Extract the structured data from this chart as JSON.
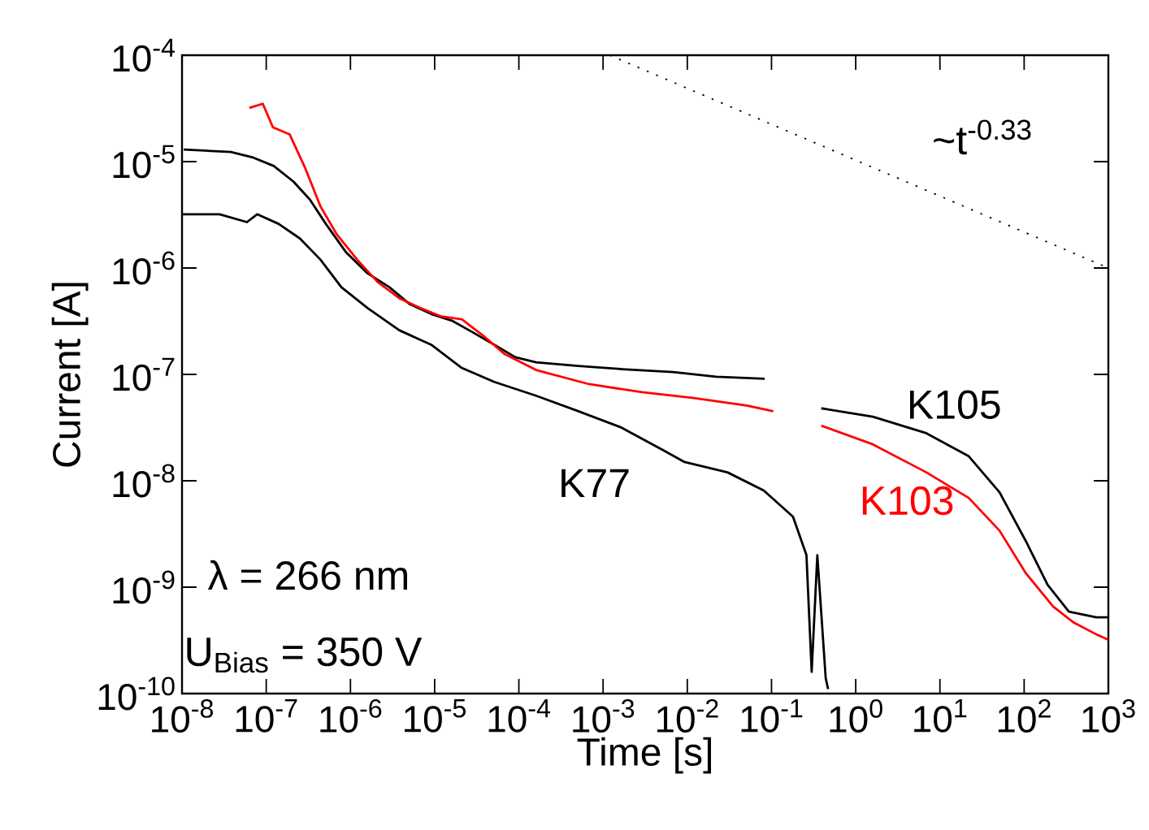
{
  "chart_data": {
    "type": "line",
    "xlabel": "Time [s]",
    "ylabel": "Current [A]",
    "log": "xy",
    "grid": false,
    "marker": "none",
    "xlim": [
      1e-08,
      1000
    ],
    "ylim": [
      1e-10,
      0.0001
    ],
    "xticks": [
      {
        "value": 1e-08,
        "label": "10$^{-8}$"
      },
      {
        "value": 1e-07,
        "label": "10$^{-7}$"
      },
      {
        "value": 1e-06,
        "label": "10$^{-6}$"
      },
      {
        "value": 1e-05,
        "label": "10$^{-5}$"
      },
      {
        "value": 0.0001,
        "label": "10$^{-4}$"
      },
      {
        "value": 0.001,
        "label": "10$^{-3}$"
      },
      {
        "value": 0.01,
        "label": "10$^{-2}$"
      },
      {
        "value": 0.1,
        "label": "10$^{-1}$"
      },
      {
        "value": 1,
        "label": "10$^{0}$"
      },
      {
        "value": 10,
        "label": "10$^{1}$"
      },
      {
        "value": 100,
        "label": "10$^{2}$"
      },
      {
        "value": 1000,
        "label": "10$^{3}$"
      }
    ],
    "yticks": [
      {
        "value": 1e-10,
        "label": "10$^{-10}$"
      },
      {
        "value": 1e-09,
        "label": "10$^{-9}$"
      },
      {
        "value": 1e-08,
        "label": "10$^{-8}$"
      },
      {
        "value": 1e-07,
        "label": "10$^{-7}$"
      },
      {
        "value": 1e-06,
        "label": "10$^{-6}$"
      },
      {
        "value": 1e-05,
        "label": "10$^{-5}$"
      },
      {
        "value": 0.0001,
        "label": "10$^{-4}$"
      }
    ],
    "series": [
      {
        "name": "K105",
        "color": "#000000",
        "x": [
          1.05e-08,
          3.8e-08,
          6.8e-08,
          1.23e-07,
          2.1e-07,
          3.3e-07,
          5.1e-07,
          8.9e-07,
          1.6e-06,
          2.9e-06,
          5e-06,
          9.1e-06,
          1.6e-05,
          2.8e-05,
          5.1e-05,
          9.1e-05,
          0.00016,
          0.00051,
          0.0017,
          0.0068,
          0.022,
          0.083,
          0.2,
          0.39,
          1.6,
          6.9,
          22,
          51,
          105,
          190,
          340,
          720,
          1000
        ],
        "values": [
          1.3e-05,
          1.23e-05,
          1.1e-05,
          9.1e-06,
          6.5e-06,
          4.4e-06,
          2.6e-06,
          1.4e-06,
          8.9e-07,
          6.6e-07,
          4.6e-07,
          3.7e-07,
          3.2e-07,
          2.5e-07,
          1.9e-07,
          1.45e-07,
          1.3e-07,
          1.2e-07,
          1.12e-07,
          1.05e-07,
          9.5e-08,
          9.1e-08,
          null,
          4.8e-08,
          4e-08,
          2.8e-08,
          1.7e-08,
          7.8e-09,
          2.7e-09,
          1.05e-09,
          5.9e-10,
          5.2e-10,
          5.2e-10
        ]
      },
      {
        "name": "K103",
        "color": "#ff0000",
        "x": [
          6.3e-08,
          9.1e-08,
          1.2e-07,
          1.9e-07,
          2.9e-07,
          4.4e-07,
          6.8e-07,
          1.2e-06,
          2.1e-06,
          3.8e-06,
          6.8e-06,
          1.2e-05,
          2.1e-05,
          3.8e-05,
          6.8e-05,
          0.00016,
          0.00068,
          0.0029,
          0.012,
          0.051,
          0.105,
          0.2,
          0.39,
          1.6,
          6.9,
          22,
          51,
          105,
          220,
          380,
          720,
          1000
        ],
        "values": [
          3.2e-05,
          3.5e-05,
          2.1e-05,
          1.8e-05,
          8.7e-06,
          3.8e-06,
          2.1e-06,
          1.2e-06,
          7.4e-07,
          5.2e-07,
          4.2e-07,
          3.5e-07,
          3.3e-07,
          2.3e-07,
          1.55e-07,
          1.1e-07,
          8.1e-08,
          6.8e-08,
          6e-08,
          5.1e-08,
          4.5e-08,
          null,
          3.3e-08,
          2.2e-08,
          1.2e-08,
          6.9e-09,
          3.4e-09,
          1.35e-09,
          6.6e-10,
          4.7e-10,
          3.6e-10,
          3.2e-10
        ]
      },
      {
        "name": "K77",
        "color": "#000000",
        "x": [
          1e-08,
          2.8e-08,
          5.9e-08,
          7.8e-08,
          1.4e-07,
          2.5e-07,
          4.4e-07,
          7.8e-07,
          1.6e-06,
          3.8e-06,
          9.1e-06,
          2.1e-05,
          5.1e-05,
          0.00016,
          0.00051,
          0.0016,
          0.0051,
          0.0093,
          0.03,
          0.081,
          0.18,
          0.26,
          0.3,
          0.35,
          0.44,
          0.47
        ],
        "values": [
          3.2e-06,
          3.2e-06,
          2.7e-06,
          3.2e-06,
          2.6e-06,
          1.9e-06,
          1.2e-06,
          6.6e-07,
          4.2e-07,
          2.6e-07,
          1.9e-07,
          1.15e-07,
          8.5e-08,
          6.3e-08,
          4.5e-08,
          3.2e-08,
          1.95e-08,
          1.5e-08,
          1.2e-08,
          8.1e-09,
          4.6e-09,
          2e-09,
          1.6e-10,
          2e-09,
          1.4e-10,
          1.1e-10
        ]
      },
      {
        "color": "#000000",
        "line_style": "dotted",
        "x": [
          0.0012,
          1000
        ],
        "values": [
          0.0001,
          1e-06
        ]
      }
    ],
    "annotations": [
      "~t$^{-0.33}$",
      "λ = 266 nm",
      "U$_{Bias}$ = 350 V"
    ]
  }
}
